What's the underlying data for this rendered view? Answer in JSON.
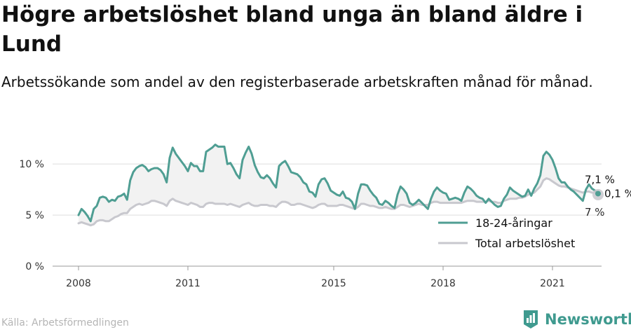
{
  "header": {
    "title": "Högre arbetslöshet bland unga än bland äldre i Lund",
    "subtitle": "Arbetssökande som andel av den registerbaserade arbetskraften månad för månad."
  },
  "footer": {
    "source": "Källa: Arbetsförmedlingen",
    "brand": "Newsworthy"
  },
  "colors": {
    "youth": "#4f9e93",
    "total": "#c8c8ce",
    "fill": "#f2f2f2",
    "grid": "#dddddd",
    "brand": "#3f9a8f"
  },
  "chart_data": {
    "type": "line",
    "title": "Högre arbetslöshet bland unga än bland äldre i Lund",
    "ylabel": "",
    "xlabel": "",
    "ylim": [
      0,
      12
    ],
    "y_ticks": [
      0,
      5,
      10
    ],
    "y_tick_labels": [
      "0 %",
      "5 %",
      "10 %"
    ],
    "x_ticks": [
      2008,
      2011,
      2015,
      2018,
      2021
    ],
    "x_tick_labels": [
      "2008",
      "2011",
      "2015",
      "2018",
      "2021"
    ],
    "grid": true,
    "legend_position": "bottom-right",
    "start": "2008-01",
    "frequency": "monthly",
    "series": [
      {
        "name": "18-24-åringar",
        "color": "#4f9e93",
        "values": [
          5.0,
          5.6,
          5.3,
          4.9,
          4.4,
          5.6,
          5.9,
          6.7,
          6.8,
          6.7,
          6.3,
          6.5,
          6.4,
          6.8,
          6.9,
          7.1,
          6.5,
          8.4,
          9.2,
          9.6,
          9.8,
          9.9,
          9.7,
          9.3,
          9.5,
          9.6,
          9.6,
          9.4,
          9.0,
          8.2,
          10.6,
          11.6,
          11.0,
          10.6,
          10.2,
          9.8,
          9.3,
          10.1,
          9.8,
          9.8,
          9.3,
          9.3,
          11.2,
          11.4,
          11.6,
          11.9,
          11.7,
          11.7,
          11.7,
          10.0,
          10.1,
          9.6,
          9.0,
          8.6,
          10.4,
          11.1,
          11.7,
          11.0,
          9.9,
          9.2,
          8.7,
          8.6,
          8.9,
          8.6,
          8.1,
          7.7,
          9.8,
          10.1,
          10.3,
          9.8,
          9.2,
          9.1,
          9.0,
          8.7,
          8.2,
          8.0,
          7.3,
          7.2,
          6.8,
          8.0,
          8.5,
          8.6,
          8.1,
          7.4,
          7.2,
          7.0,
          6.9,
          7.3,
          6.7,
          6.6,
          6.3,
          5.6,
          7.1,
          8.0,
          8.0,
          7.9,
          7.4,
          7.0,
          6.7,
          6.1,
          6.0,
          6.4,
          6.2,
          5.9,
          5.7,
          7.0,
          7.8,
          7.5,
          7.1,
          6.2,
          6.0,
          6.2,
          6.5,
          6.2,
          5.9,
          5.6,
          6.6,
          7.3,
          7.7,
          7.4,
          7.2,
          7.1,
          6.5,
          6.6,
          6.7,
          6.6,
          6.4,
          7.2,
          7.8,
          7.6,
          7.3,
          6.9,
          6.7,
          6.6,
          6.2,
          6.6,
          6.3,
          6.0,
          5.8,
          5.9,
          6.6,
          7.0,
          7.7,
          7.4,
          7.2,
          7.0,
          6.8,
          6.9,
          7.5,
          6.9,
          7.6,
          8.1,
          8.9,
          10.8,
          11.2,
          10.9,
          10.4,
          9.6,
          8.6,
          8.2,
          8.2,
          7.8,
          7.5,
          7.3,
          7.0,
          6.7,
          6.4,
          7.5,
          8.0,
          7.6,
          7.4,
          7.1
        ]
      },
      {
        "name": "Total arbetslöshet",
        "color": "#c8c8ce",
        "values": [
          4.2,
          4.3,
          4.2,
          4.1,
          4.0,
          4.1,
          4.4,
          4.5,
          4.5,
          4.4,
          4.4,
          4.6,
          4.8,
          4.9,
          5.1,
          5.2,
          5.2,
          5.6,
          5.8,
          6.0,
          6.1,
          6.0,
          6.1,
          6.2,
          6.4,
          6.4,
          6.3,
          6.2,
          6.1,
          5.9,
          6.4,
          6.6,
          6.4,
          6.3,
          6.2,
          6.1,
          6.0,
          6.2,
          6.1,
          6.0,
          5.8,
          5.8,
          6.1,
          6.2,
          6.2,
          6.1,
          6.1,
          6.1,
          6.1,
          6.0,
          6.1,
          6.0,
          5.9,
          5.8,
          6.0,
          6.1,
          6.2,
          6.0,
          5.9,
          5.9,
          6.0,
          6.0,
          6.0,
          5.9,
          5.9,
          5.8,
          6.1,
          6.3,
          6.3,
          6.2,
          6.0,
          6.0,
          6.1,
          6.1,
          6.0,
          5.9,
          5.8,
          5.7,
          5.8,
          6.0,
          6.1,
          6.1,
          5.9,
          5.9,
          5.9,
          5.9,
          6.0,
          6.0,
          5.9,
          5.8,
          5.7,
          5.6,
          5.8,
          6.1,
          6.1,
          6.0,
          5.9,
          5.9,
          5.8,
          5.7,
          5.7,
          5.8,
          5.7,
          5.6,
          5.6,
          5.8,
          6.0,
          6.0,
          5.9,
          5.8,
          5.9,
          6.0,
          6.1,
          6.0,
          6.0,
          6.0,
          6.2,
          6.3,
          6.3,
          6.2,
          6.2,
          6.2,
          6.2,
          6.2,
          6.2,
          6.2,
          6.2,
          6.3,
          6.4,
          6.4,
          6.4,
          6.3,
          6.3,
          6.3,
          6.3,
          6.4,
          6.3,
          6.3,
          6.2,
          6.2,
          6.4,
          6.5,
          6.6,
          6.6,
          6.6,
          6.7,
          6.7,
          6.8,
          7.0,
          7.1,
          7.2,
          7.5,
          7.8,
          8.4,
          8.6,
          8.5,
          8.3,
          8.1,
          7.9,
          7.8,
          7.8,
          7.7,
          7.6,
          7.5,
          7.4,
          7.3,
          7.2,
          7.3,
          7.3,
          7.2,
          7.2,
          7.0
        ]
      }
    ],
    "annotations": [
      {
        "label": "7,1 %",
        "series": "18-24-åringar"
      },
      {
        "label": "0,1 %",
        "series": "difference"
      },
      {
        "label": "7 %",
        "series": "Total arbetslöshet"
      }
    ]
  }
}
